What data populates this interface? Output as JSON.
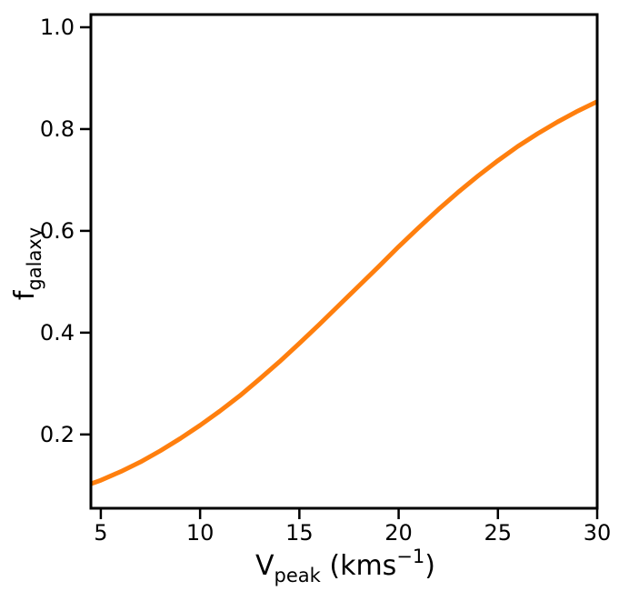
{
  "chart_data": {
    "type": "line",
    "xlabel": "V",
    "xlabel_sub": "peak",
    "xlabel_unit": " (kms",
    "xlabel_sup": "−1",
    "xlabel_close": ")",
    "ylabel": "f",
    "ylabel_sub": "galaxy",
    "xlim": [
      4.5,
      30
    ],
    "ylim": [
      0.055,
      1.025
    ],
    "xticks": [
      5,
      10,
      15,
      20,
      25,
      30
    ],
    "yticks": [
      0.2,
      0.4,
      0.6,
      0.8,
      1.0
    ],
    "xtick_labels": [
      "5",
      "10",
      "15",
      "20",
      "25",
      "30"
    ],
    "ytick_labels": [
      "0.2",
      "0.4",
      "0.6",
      "0.8",
      "1.0"
    ],
    "grid": false,
    "series": [
      {
        "color": "#ff7f0e",
        "x": [
          4.5,
          5,
          6,
          7,
          8,
          9,
          10,
          11,
          12,
          13,
          14,
          15,
          16,
          17,
          18,
          19,
          20,
          21,
          22,
          23,
          24,
          25,
          26,
          27,
          28,
          29,
          30
        ],
        "y": [
          0.103,
          0.11,
          0.127,
          0.146,
          0.168,
          0.192,
          0.218,
          0.246,
          0.276,
          0.309,
          0.343,
          0.379,
          0.416,
          0.454,
          0.492,
          0.53,
          0.569,
          0.606,
          0.642,
          0.676,
          0.708,
          0.738,
          0.766,
          0.791,
          0.814,
          0.835,
          0.854
        ]
      }
    ]
  }
}
